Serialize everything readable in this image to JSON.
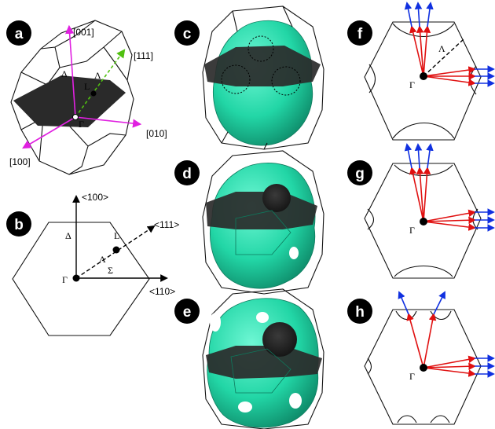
{
  "panels": {
    "a": {
      "label": "a",
      "axes": [
        "[001]",
        "[111]",
        "[010]",
        "[100]"
      ],
      "points": [
        "Γ",
        "L",
        "Λ",
        "Δ"
      ]
    },
    "b": {
      "label": "b",
      "axes": [
        "<100>",
        "<111>",
        "<110>"
      ],
      "points": [
        "Γ",
        "L",
        "Δ",
        "Λ",
        "Σ"
      ]
    },
    "c": {
      "label": "c"
    },
    "d": {
      "label": "d"
    },
    "e": {
      "label": "e"
    },
    "f": {
      "label": "f",
      "points": [
        "Γ",
        "Λ"
      ]
    },
    "g": {
      "label": "g",
      "points": [
        "Γ"
      ]
    },
    "h": {
      "label": "h",
      "points": [
        "Γ"
      ]
    }
  },
  "colors": {
    "surface": "#2ee0b0",
    "plane": "#2a2a2a",
    "magenta_axis": "#e020e0",
    "green_axis": "#50c010",
    "red_vector": "#e01010",
    "blue_vector": "#1030e0"
  }
}
